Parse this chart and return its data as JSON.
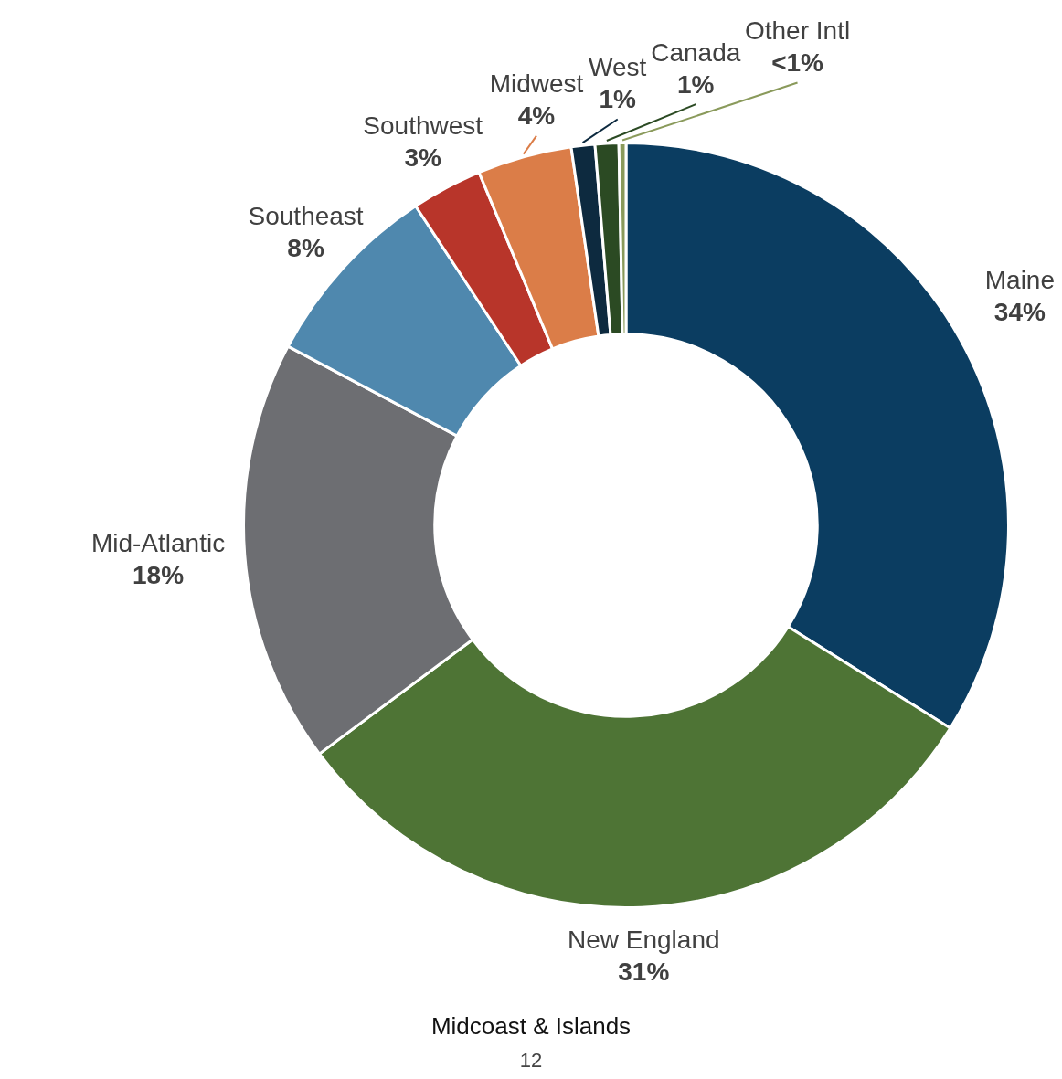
{
  "chart_data": {
    "type": "donut",
    "title": "Midcoast & Islands",
    "annotations": [
      "12"
    ],
    "categories": [
      "Maine",
      "New England",
      "Mid-Atlantic",
      "Southeast",
      "Southwest",
      "Midwest",
      "West",
      "Canada",
      "Other Intl"
    ],
    "values": [
      34,
      31,
      18,
      8,
      3,
      4,
      1,
      1,
      0.3
    ],
    "value_labels": [
      "34%",
      "31%",
      "18%",
      "8%",
      "3%",
      "4%",
      "1%",
      "1%",
      "<1%"
    ],
    "colors": [
      "#0b3d61",
      "#4e7435",
      "#6d6e72",
      "#4f88ae",
      "#b8352a",
      "#db7d48",
      "#0d2a3f",
      "#2b4a23",
      "#8a9a5b"
    ],
    "legend": false
  }
}
